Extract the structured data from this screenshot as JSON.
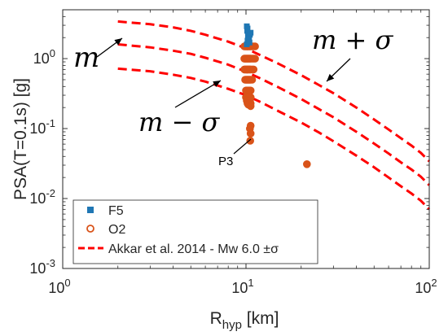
{
  "chart_data": {
    "type": "scatter",
    "xscale": "log",
    "yscale": "log",
    "xlim": [
      1,
      100
    ],
    "ylim": [
      0.001,
      5
    ],
    "xlabel": {
      "main": "R",
      "sub": "hyp",
      "rest": " [km]"
    },
    "ylabel": "PSA(T=0.1s) [g]",
    "x_ticks": [
      {
        "value": 1,
        "base": "10",
        "exp": "0"
      },
      {
        "value": 10,
        "base": "10",
        "exp": "1"
      },
      {
        "value": 100,
        "base": "10",
        "exp": "2"
      }
    ],
    "y_ticks": [
      {
        "value": 0.001,
        "base": "10",
        "exp": "-3"
      },
      {
        "value": 0.01,
        "base": "10",
        "exp": "-2"
      },
      {
        "value": 0.1,
        "base": "10",
        "exp": "-1"
      },
      {
        "value": 1,
        "base": "10",
        "exp": "0"
      }
    ],
    "series": [
      {
        "name": "F5",
        "kind": "scatter",
        "marker": "square",
        "color": "#1f77b4",
        "x": [
          10.1,
          10.2,
          10.15,
          10.3,
          10.25,
          10.4,
          10.5,
          10.6,
          10.2,
          10.35,
          10.1,
          10.45
        ],
        "y": [
          2.9,
          2.7,
          2.5,
          2.3,
          2.1,
          2.0,
          2.2,
          2.35,
          1.8,
          1.9,
          1.6,
          1.7
        ]
      },
      {
        "name": "O2",
        "kind": "scatter",
        "marker": "circle",
        "color": "#d95319",
        "x": [
          9.8,
          9.9,
          10.0,
          10.1,
          10.2,
          10.3,
          10.4,
          10.5,
          10.6,
          10.8,
          11.0,
          11.2,
          9.8,
          9.9,
          10.0,
          10.1,
          10.2,
          10.3,
          10.4,
          10.5,
          10.6,
          10.8,
          11.0,
          11.2,
          9.8,
          9.9,
          10.0,
          10.1,
          10.2,
          10.3,
          10.4,
          10.5,
          10.6,
          10.8,
          11.0,
          9.9,
          10.0,
          10.1,
          10.2,
          10.3,
          10.4,
          10.5,
          10.6,
          10.8,
          10.0,
          10.1,
          10.2,
          10.3,
          10.4,
          10.5,
          10.6,
          10.0,
          10.2,
          10.4,
          10.6,
          10.1,
          10.3,
          10.5,
          10.2,
          10.4,
          10.6,
          10.3,
          10.6,
          10.6,
          10.5,
          10.6,
          10.55,
          21.5
        ],
        "y": [
          1.5,
          1.5,
          1.5,
          1.5,
          1.5,
          1.5,
          1.5,
          1.5,
          1.5,
          1.5,
          1.5,
          1.5,
          1.0,
          1.0,
          1.0,
          1.0,
          1.0,
          1.0,
          1.0,
          1.0,
          1.0,
          1.0,
          1.0,
          1.0,
          0.7,
          0.7,
          0.7,
          0.7,
          0.7,
          0.7,
          0.7,
          0.7,
          0.7,
          0.7,
          0.7,
          0.5,
          0.5,
          0.5,
          0.5,
          0.5,
          0.5,
          0.5,
          0.5,
          0.5,
          0.35,
          0.35,
          0.35,
          0.35,
          0.35,
          0.35,
          0.35,
          0.28,
          0.28,
          0.28,
          0.28,
          0.25,
          0.25,
          0.25,
          0.23,
          0.23,
          0.23,
          0.22,
          0.21,
          0.11,
          0.1,
          0.085,
          0.067,
          0.031
        ]
      },
      {
        "name": "Akkar et al. 2014 - Mw 6.0 ±σ",
        "kind": "line",
        "style": "dashed",
        "color": "#ff0000",
        "curves": [
          {
            "x": [
              2,
              3,
              4,
              5,
              6,
              8,
              10,
              12,
              15,
              20,
              25,
              30,
              40,
              50,
              60,
              70,
              80,
              90,
              100
            ],
            "y": [
              3.4,
              3.1,
              2.8,
              2.5,
              2.2,
              1.75,
              1.4,
              1.12,
              0.85,
              0.58,
              0.42,
              0.32,
              0.2,
              0.135,
              0.097,
              0.073,
              0.057,
              0.045,
              0.034
            ]
          },
          {
            "x": [
              2,
              3,
              4,
              5,
              6,
              8,
              10,
              12,
              15,
              20,
              25,
              30,
              40,
              50,
              60,
              70,
              80,
              90,
              100
            ],
            "y": [
              1.6,
              1.45,
              1.3,
              1.17,
              1.03,
              0.82,
              0.65,
              0.52,
              0.39,
              0.265,
              0.19,
              0.145,
              0.09,
              0.061,
              0.044,
              0.033,
              0.026,
              0.0205,
              0.0155
            ]
          },
          {
            "x": [
              2,
              3,
              4,
              5,
              6,
              8,
              10,
              12,
              15,
              20,
              25,
              30,
              40,
              50,
              60,
              70,
              80,
              90,
              100
            ],
            "y": [
              0.72,
              0.66,
              0.59,
              0.53,
              0.47,
              0.37,
              0.3,
              0.24,
              0.178,
              0.122,
              0.088,
              0.066,
              0.041,
              0.028,
              0.02,
              0.015,
              0.0118,
              0.0093,
              0.007
            ]
          }
        ]
      }
    ],
    "annotations": [
      {
        "text": "m",
        "kind": "math"
      },
      {
        "text": "m + σ",
        "kind": "math"
      },
      {
        "text": "m − σ",
        "kind": "math"
      },
      {
        "text": "P3",
        "kind": "plain"
      }
    ],
    "legend": {
      "placement": "bottom-left",
      "entries": [
        {
          "label": "F5",
          "marker": "square",
          "color": "#1f77b4"
        },
        {
          "label": "O2",
          "marker": "circle",
          "color": "#d95319"
        },
        {
          "label": "Akkar et al. 2014 - Mw 6.0 ±σ",
          "marker": "dashed-line",
          "color": "#ff0000"
        }
      ]
    },
    "grid": false
  }
}
